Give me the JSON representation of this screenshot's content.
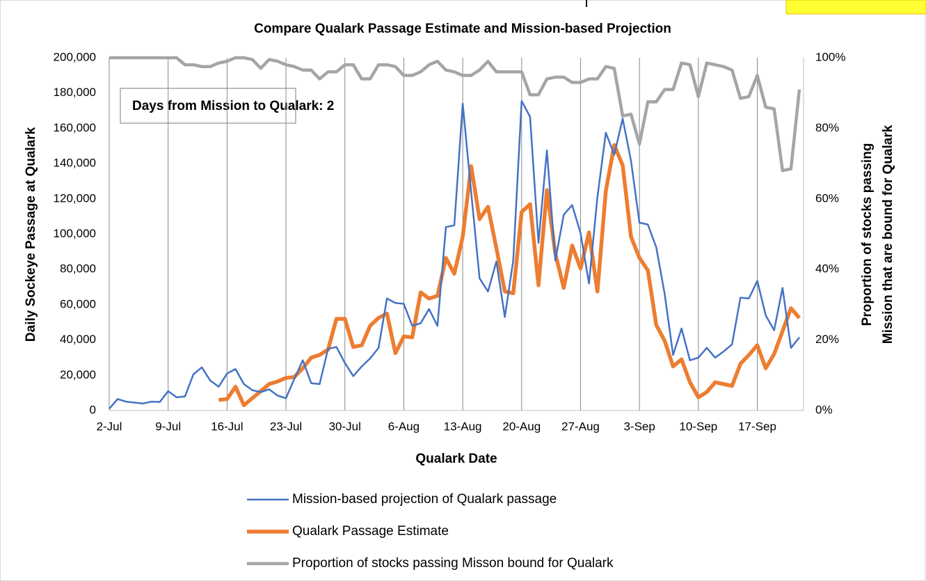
{
  "chart_data": {
    "type": "line",
    "title": "Compare Qualark Passage Estimate and Mission-based Projection",
    "annotation": "Days from Mission to Qualark: 2",
    "xlabel": "Qualark Date",
    "ylabel": "Daily Sockeye Passage at Qualark",
    "y2label": [
      "Proportion of stocks passing",
      "Mission that are bound for Qualark"
    ],
    "categories": [
      "2-Jul",
      null,
      null,
      null,
      null,
      null,
      null,
      "9-Jul",
      null,
      null,
      null,
      null,
      null,
      null,
      "16-Jul",
      null,
      null,
      null,
      null,
      null,
      null,
      "23-Jul",
      null,
      null,
      null,
      null,
      null,
      null,
      "30-Jul",
      null,
      null,
      null,
      null,
      null,
      null,
      "6-Aug",
      null,
      null,
      null,
      null,
      null,
      null,
      "13-Aug",
      null,
      null,
      null,
      null,
      null,
      null,
      "20-Aug",
      null,
      null,
      null,
      null,
      null,
      null,
      "27-Aug",
      null,
      null,
      null,
      null,
      null,
      null,
      "3-Sep",
      null,
      null,
      null,
      null,
      null,
      null,
      "10-Sep",
      null,
      null,
      null,
      null,
      null,
      null,
      "17-Sep",
      null,
      null,
      null,
      null,
      null
    ],
    "ylim": [
      0,
      200000
    ],
    "yticks": [
      0,
      {
        "value": 20000,
        "label": "20,000"
      },
      {
        "value": 40000,
        "label": "40,000"
      },
      {
        "value": 60000,
        "label": "60,000"
      },
      {
        "value": 80000,
        "label": "80,000"
      },
      {
        "value": 100000,
        "label": "100,000"
      },
      {
        "value": 120000,
        "label": "120,000"
      },
      {
        "value": 140000,
        "label": "140,000"
      },
      {
        "value": 160000,
        "label": "160,000"
      },
      {
        "value": 180000,
        "label": "180,000"
      },
      {
        "value": 200000,
        "label": "200,000"
      }
    ],
    "y2lim": [
      0,
      100
    ],
    "y2ticks": [
      {
        "value": 0,
        "label": "0%"
      },
      {
        "value": 20,
        "label": "20%"
      },
      {
        "value": 40,
        "label": "40%"
      },
      {
        "value": 60,
        "label": "60%"
      },
      {
        "value": 80,
        "label": "80%"
      },
      {
        "value": 100,
        "label": "100%"
      }
    ],
    "grid": "x",
    "legend": "bottom",
    "series": [
      {
        "name": "Mission-based projection of Qualark passage",
        "color": "#4472c4",
        "width": 2.5,
        "values": [
          1000,
          6500,
          5000,
          4500,
          4000,
          5000,
          4800,
          11000,
          7500,
          8000,
          20500,
          24500,
          17000,
          13500,
          21000,
          23500,
          15000,
          11500,
          10500,
          12000,
          8500,
          7000,
          18000,
          28500,
          15500,
          15000,
          35000,
          36000,
          27000,
          19500,
          25000,
          29500,
          35500,
          63500,
          61000,
          60500,
          48000,
          49500,
          57500,
          48000,
          104000,
          105000,
          174000,
          124000,
          75000,
          67500,
          84500,
          53000,
          85000,
          175500,
          166500,
          95000,
          147500,
          85000,
          111000,
          116500,
          100500,
          72000,
          121000,
          157500,
          145000,
          165500,
          141500,
          106500,
          105500,
          92500,
          66000,
          31500,
          46500,
          28500,
          30000,
          35500,
          30000,
          33500,
          37500,
          64000,
          63500,
          73500,
          54000,
          45500,
          69500,
          35500,
          41500
        ]
      },
      {
        "name": "Qualark Passage Estimate",
        "color": "#ed7d31",
        "width": 5.5,
        "values": [
          null,
          null,
          null,
          null,
          null,
          null,
          null,
          null,
          null,
          null,
          null,
          null,
          null,
          6000,
          6500,
          13500,
          3000,
          7000,
          11000,
          15000,
          16500,
          18500,
          19000,
          24000,
          30000,
          31500,
          34500,
          52000,
          52000,
          36000,
          37000,
          48000,
          52500,
          55000,
          32500,
          42000,
          41500,
          67000,
          63500,
          65000,
          86500,
          77500,
          98500,
          138500,
          108500,
          115500,
          92000,
          67500,
          66500,
          112500,
          117000,
          71000,
          125000,
          89000,
          69500,
          93500,
          80500,
          101000,
          67500,
          124500,
          150500,
          139000,
          98500,
          86500,
          79500,
          48500,
          39500,
          25000,
          29000,
          16000,
          7500,
          10500,
          16000,
          15000,
          14000,
          26500,
          31500,
          37000,
          24000,
          32000,
          45000,
          58000,
          52500
        ]
      },
      {
        "name": "Proportion of stocks passing Misson bound for Qualark",
        "color": "#a5a5a5",
        "width": 4.5,
        "axis": "y2",
        "values": [
          100,
          100,
          100,
          100,
          100,
          100,
          100,
          100,
          100,
          98,
          98,
          97.5,
          97.5,
          98.5,
          99,
          100,
          100,
          99.5,
          97,
          99.5,
          99,
          98,
          97.5,
          96.5,
          96.5,
          94,
          96,
          96,
          98,
          98,
          94,
          94,
          98,
          98,
          97.5,
          95,
          95,
          96,
          98,
          99,
          96.5,
          96,
          95,
          95,
          96.5,
          99,
          96,
          96,
          96,
          96,
          89.5,
          89.5,
          94,
          94.5,
          94.5,
          93,
          93,
          94,
          94,
          97.5,
          97,
          83.5,
          84,
          75.5,
          87.5,
          87.5,
          91,
          91,
          98.5,
          98,
          89,
          98.5,
          98,
          97.5,
          96.5,
          88.5,
          89,
          95,
          86,
          85.5,
          68,
          68.5,
          91
        ]
      }
    ]
  }
}
